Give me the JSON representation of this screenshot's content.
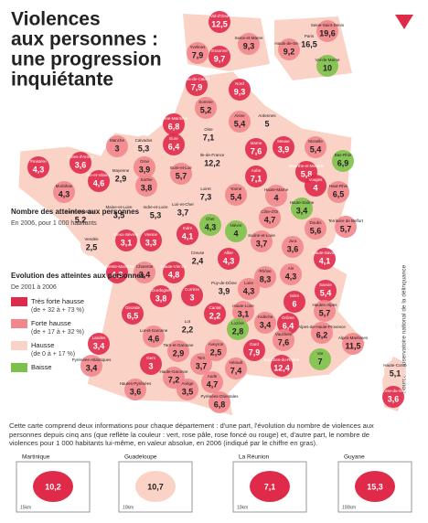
{
  "header": {
    "title_lines": [
      "Violences",
      "aux personnes :",
      "une progression",
      "inquiétante"
    ]
  },
  "legend": {
    "count_title": "Nombre des atteintes aux personnes",
    "count_sub": "En 2006, pour 1 000 habitants",
    "evolution_title": "Evolution des atteintes aux personnes",
    "evolution_sub": "De 2001 à 2006",
    "items": [
      {
        "label": "Très forte hausse",
        "range": "(de + 32 à + 73 %)",
        "color": "#e02a4a"
      },
      {
        "label": "Forte hausse",
        "range": "(de + 17 à + 32 %)",
        "color": "#f2868c"
      },
      {
        "label": "Hausse",
        "range": "(de 0 à + 17 %)",
        "color": "#fbd2c6"
      },
      {
        "label": "Baisse",
        "color": "#7cc24a"
      }
    ]
  },
  "paris": [
    {
      "name": "Val-d'Oise",
      "value": "12,5",
      "class": 0
    },
    {
      "name": "Yvelines",
      "value": "7,9",
      "class": 1
    },
    {
      "name": "Essonne",
      "value": "9,7",
      "class": 0
    },
    {
      "name": "Seine-et-Marne",
      "value": "9,3",
      "class": 1
    },
    {
      "name": "Hauts-de-Seine",
      "value": "9,2",
      "class": 1
    },
    {
      "name": "Paris",
      "value": "16,5",
      "class": 2
    },
    {
      "name": "Seine-Saint-Denis",
      "value": "19,6",
      "class": 1
    },
    {
      "name": "Val-de-Marne",
      "value": "10",
      "class": 3
    }
  ],
  "departments": [
    {
      "name": "Pas-de-Calais",
      "value": "7,9",
      "class": 0
    },
    {
      "name": "Nord",
      "value": "9,3",
      "class": 0
    },
    {
      "name": "Somme",
      "value": "5,2",
      "class": 1
    },
    {
      "name": "Seine-Maritime",
      "value": "6,8",
      "class": 0
    },
    {
      "name": "Aisne",
      "value": "5,4",
      "class": 1
    },
    {
      "name": "Ardennes",
      "value": "5",
      "class": 2
    },
    {
      "name": "Oise",
      "value": "7,1",
      "class": 2
    },
    {
      "name": "Manche",
      "value": "3",
      "class": 1
    },
    {
      "name": "Calvados",
      "value": "5,3",
      "class": 2
    },
    {
      "name": "Eure",
      "value": "6,4",
      "class": 0
    },
    {
      "name": "Orne",
      "value": "3,9",
      "class": 1
    },
    {
      "name": "Eure-et-Loir",
      "value": "5,7",
      "class": 1
    },
    {
      "name": "Ile-de-France",
      "value": "12,2",
      "class": 2
    },
    {
      "name": "Marne",
      "value": "7,6",
      "class": 0
    },
    {
      "name": "Meuse",
      "value": "3,9",
      "class": 0
    },
    {
      "name": "Moselle",
      "value": "5,4",
      "class": 1
    },
    {
      "name": "Bas-Rhin",
      "value": "6,9",
      "class": 3
    },
    {
      "name": "Meurthe-et-Moselle",
      "value": "5,8",
      "class": 0
    },
    {
      "name": "Finistère",
      "value": "4,3",
      "class": 0
    },
    {
      "name": "Côtes-d'Armor",
      "value": "3,6",
      "class": 0
    },
    {
      "name": "Morbihan",
      "value": "4,3",
      "class": 1
    },
    {
      "name": "Ille-et-Vilaine",
      "value": "4,6",
      "class": 0
    },
    {
      "name": "Mayenne",
      "value": "2,9",
      "class": 2
    },
    {
      "name": "Sarthe",
      "value": "3,8",
      "class": 1
    },
    {
      "name": "Loiret",
      "value": "7,3",
      "class": 2
    },
    {
      "name": "Aube",
      "value": "7,1",
      "class": 0
    },
    {
      "name": "Haute-Marne",
      "value": "4",
      "class": 1
    },
    {
      "name": "Vosges",
      "value": "4",
      "class": 0
    },
    {
      "name": "Haut-Rhin",
      "value": "6,5",
      "class": 1
    },
    {
      "name": "Loire-Atlantique",
      "value": "5,2",
      "class": 2
    },
    {
      "name": "Maine-et-Loire",
      "value": "3,5",
      "class": 2
    },
    {
      "name": "Indre-et-Loire",
      "value": "5,3",
      "class": 2
    },
    {
      "name": "Loir-et-Cher",
      "value": "3,7",
      "class": 2
    },
    {
      "name": "Yonne",
      "value": "5,4",
      "class": 1
    },
    {
      "name": "Côte-d'Or",
      "value": "4,7",
      "class": 1
    },
    {
      "name": "Haute-Saône",
      "value": "3,4",
      "class": 3
    },
    {
      "name": "Territoire de Belfort",
      "value": "5,7",
      "class": 1
    },
    {
      "name": "Doubs",
      "value": "5,6",
      "class": 1
    },
    {
      "name": "Vendée",
      "value": "2,5",
      "class": 2
    },
    {
      "name": "Deux-Sèvres",
      "value": "3,1",
      "class": 0
    },
    {
      "name": "Vienne",
      "value": "3,3",
      "class": 0
    },
    {
      "name": "Indre",
      "value": "4,1",
      "class": 0
    },
    {
      "name": "Cher",
      "value": "4,3",
      "class": 3
    },
    {
      "name": "Nièvre",
      "value": "4",
      "class": 3
    },
    {
      "name": "Saône-et-Loire",
      "value": "3,7",
      "class": 1
    },
    {
      "name": "Jura",
      "value": "3,6",
      "class": 1
    },
    {
      "name": "Charente-Maritime",
      "value": "4,3",
      "class": 0
    },
    {
      "name": "Charente",
      "value": "3,4",
      "class": 1
    },
    {
      "name": "Haute-Vienne",
      "value": "4,8",
      "class": 0
    },
    {
      "name": "Creuse",
      "value": "2,4",
      "class": 2
    },
    {
      "name": "Allier",
      "value": "4,3",
      "class": 0
    },
    {
      "name": "Ain",
      "value": "4,3",
      "class": 1
    },
    {
      "name": "Haute-Savoie",
      "value": "4,1",
      "class": 0
    },
    {
      "name": "Rhône",
      "value": "8,3",
      "class": 1
    },
    {
      "name": "Savoie",
      "value": "5,4",
      "class": 0
    },
    {
      "name": "Loire",
      "value": "4,3",
      "class": 1
    },
    {
      "name": "Isère",
      "value": "6",
      "class": 0
    },
    {
      "name": "Puy-de-Dôme",
      "value": "3,9",
      "class": 2
    },
    {
      "name": "Corrèze",
      "value": "3",
      "class": 0
    },
    {
      "name": "Dordogne",
      "value": "3,8",
      "class": 0
    },
    {
      "name": "Gironde",
      "value": "6,5",
      "class": 0
    },
    {
      "name": "Cantal",
      "value": "2,2",
      "class": 0
    },
    {
      "name": "Haute-Loire",
      "value": "3,1",
      "class": 1
    },
    {
      "name": "Lot",
      "value": "2,2",
      "class": 2
    },
    {
      "name": "Lozère",
      "value": "2,8",
      "class": 3
    },
    {
      "name": "Ardèche",
      "value": "3,4",
      "class": 1
    },
    {
      "name": "Drôme",
      "value": "6,4",
      "class": 0
    },
    {
      "name": "Hautes-Alpes",
      "value": "5,7",
      "class": 1
    },
    {
      "name": "Alpes-de-Haute-Provence",
      "value": "6,2",
      "class": 1
    },
    {
      "name": "Alpes-Maritimes",
      "value": "11,5",
      "class": 1
    },
    {
      "name": "Landes",
      "value": "3,4",
      "class": 0
    },
    {
      "name": "Lot-et-Garonne",
      "value": "4,6",
      "class": 1
    },
    {
      "name": "Tarn-et-Garonne",
      "value": "2,9",
      "class": 1
    },
    {
      "name": "Aveyron",
      "value": "2,5",
      "class": 1
    },
    {
      "name": "Gard",
      "value": "7,9",
      "class": 0
    },
    {
      "name": "Vaucluse",
      "value": "7,6",
      "class": 1
    },
    {
      "name": "Var",
      "value": "7",
      "class": 3
    },
    {
      "name": "Bouches-du-Rhône",
      "value": "12,4",
      "class": 0
    },
    {
      "name": "Hérault",
      "value": "7,4",
      "class": 1
    },
    {
      "name": "Tarn",
      "value": "3,7",
      "class": 1
    },
    {
      "name": "Gers",
      "value": "3",
      "class": 0
    },
    {
      "name": "Haute-Garonne",
      "value": "7,2",
      "class": 1
    },
    {
      "name": "Pyrénées-Atlantiques",
      "value": "3,4",
      "class": 1
    },
    {
      "name": "Hautes-Pyrénées",
      "value": "3,6",
      "class": 1
    },
    {
      "name": "Ariège",
      "value": "3,5",
      "class": 1
    },
    {
      "name": "Aude",
      "value": "4,7",
      "class": 1
    },
    {
      "name": "Pyrénées-Orientales",
      "value": "6,8",
      "class": 1
    },
    {
      "name": "Haute-Corse",
      "value": "5,1",
      "class": 2
    },
    {
      "name": "Corse-du-Sud",
      "value": "3,6",
      "class": 0
    }
  ],
  "source": "Source : Observatoire national de la délinquance",
  "caption": "Cette carte comprend deux informations pour chaque département : d'une part, l'évolution du nombre de violences aux personnes depuis cinq ans (que reflète la couleur : vert, rose pâle, rose foncé ou rouge) et, d'autre part, le nombre de violences pour 1 000 habitants lui-même, en valeur absolue, en 2006 (indiqué par le chiffre en gras).",
  "overseas": [
    {
      "name": "Martinique",
      "value": "10,2",
      "scale": "15km",
      "class": 0
    },
    {
      "name": "Guadeloupe",
      "value": "10,7",
      "scale": "10km",
      "class": 2
    },
    {
      "name": "La Réunion",
      "value": "7,1",
      "scale": "10km",
      "class": 0
    },
    {
      "name": "Guyane",
      "value": "15,3",
      "scale": "100km",
      "class": 0
    }
  ]
}
